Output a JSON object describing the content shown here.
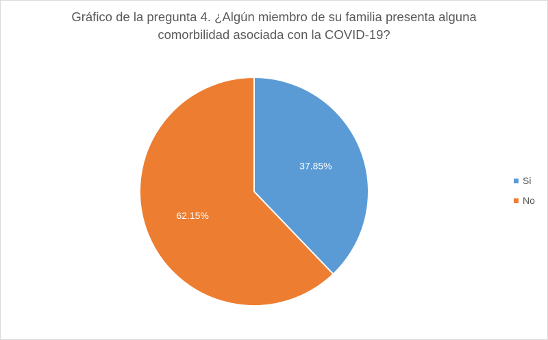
{
  "chart_data": {
    "type": "pie",
    "title_line1": "Gráfico de la pregunta 4. ¿Algún miembro de su familia presenta alguna",
    "title_line2": "comorbilidad asociada con la COVID-19?",
    "categories": [
      "Si",
      "No"
    ],
    "values": [
      37.85,
      62.15
    ],
    "data_labels": [
      "37.85%",
      "62.15%"
    ],
    "colors": [
      "#5b9bd5",
      "#ed7d31"
    ],
    "legend_position": "right",
    "start_angle": "top, clockwise"
  }
}
